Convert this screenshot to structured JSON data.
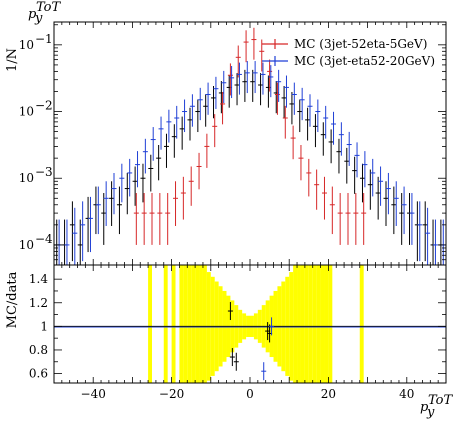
{
  "chart_data": {
    "type": "scatter",
    "top_panel": {
      "ylabel": "1/N",
      "yscale": "log",
      "ylim": [
        5e-05,
        0.22
      ],
      "yticks": [
        {
          "v": 0.0001,
          "base": "10",
          "exp": "−4"
        },
        {
          "v": 0.001,
          "base": "10",
          "exp": "−3"
        },
        {
          "v": 0.01,
          "base": "10",
          "exp": "−2"
        },
        {
          "v": 0.1,
          "base": "10",
          "exp": "−1"
        }
      ],
      "title_top": "p",
      "title_top_sub": "y",
      "title_top_sup": "ToT"
    },
    "ratio_panel": {
      "ylabel": "MC/data",
      "ylim": [
        0.52,
        1.52
      ],
      "yticks": [
        "0.6",
        "0.8",
        "1",
        "1.2",
        "1.4"
      ],
      "band_color": "#ffff00"
    },
    "xlim": [
      -50,
      50
    ],
    "xticks": [
      "-40",
      "-20",
      "0",
      "20",
      "40"
    ],
    "xlabel": "p",
    "xlabel_sub": "y",
    "xlabel_sup": "ToT",
    "legend": [
      {
        "name": "MC (3jet-52eta-5GeV)",
        "color": "#d62728"
      },
      {
        "name": "MC (3jet-eta52-20GeV)",
        "color": "#1f3fd6"
      }
    ],
    "series": [
      {
        "name": "data",
        "color": "#000000",
        "x": [
          -49,
          -47,
          -45,
          -43,
          -41,
          -39,
          -37,
          -35,
          -33,
          -31,
          -29,
          -27,
          -25,
          -23,
          -21,
          -19,
          -17,
          -15,
          -13,
          -11,
          -9,
          -7,
          -5,
          -3,
          -1,
          1,
          3,
          5,
          7,
          9,
          11,
          13,
          15,
          17,
          19,
          21,
          23,
          25,
          27,
          29,
          31,
          33,
          35,
          37,
          39,
          41,
          43,
          45,
          47,
          49
        ],
        "y": [
          0.0001,
          0.0001,
          0.0002,
          0.0001,
          0.00025,
          0.0004,
          0.0003,
          0.0005,
          0.0004,
          0.0007,
          0.0009,
          0.001,
          0.0014,
          0.002,
          0.003,
          0.0042,
          0.0055,
          0.0075,
          0.01,
          0.012,
          0.016,
          0.019,
          0.023,
          0.025,
          0.028,
          0.028,
          0.025,
          0.023,
          0.019,
          0.016,
          0.013,
          0.01,
          0.0075,
          0.006,
          0.0045,
          0.0035,
          0.0025,
          0.0018,
          0.0013,
          0.001,
          0.0008,
          0.0006,
          0.0005,
          0.0004,
          0.0003,
          0.0003,
          0.0002,
          0.0002,
          0.0001,
          0.0001
        ]
      },
      {
        "name": "MC (3jet-52eta-5GeV)",
        "color": "#d62728",
        "x": [
          -29,
          -27,
          -25,
          -23,
          -21,
          -19,
          -17,
          -15,
          -13,
          -11,
          -9,
          -7,
          -5,
          -3,
          -1,
          1,
          3,
          5,
          7,
          9,
          11,
          13,
          15,
          17,
          19,
          21,
          23,
          25,
          27,
          29
        ],
        "y": [
          0.0003,
          0.0003,
          0.0003,
          0.0003,
          0.0003,
          0.0005,
          0.0006,
          0.0009,
          0.0015,
          0.003,
          0.006,
          0.013,
          0.035,
          0.065,
          0.11,
          0.12,
          0.08,
          0.04,
          0.018,
          0.008,
          0.004,
          0.002,
          0.0012,
          0.0008,
          0.0006,
          0.0004,
          0.0003,
          0.0003,
          0.0003,
          0.0003
        ]
      },
      {
        "name": "MC (3jet-eta52-20GeV)",
        "color": "#1f3fd6",
        "x": [
          -49,
          -47,
          -45,
          -43,
          -41,
          -39,
          -37,
          -35,
          -33,
          -31,
          -29,
          -27,
          -25,
          -23,
          -21,
          -19,
          -17,
          -15,
          -13,
          -11,
          -9,
          -7,
          -5,
          -3,
          -1,
          1,
          3,
          5,
          7,
          9,
          11,
          13,
          15,
          17,
          19,
          21,
          23,
          25,
          27,
          29,
          31,
          33,
          35,
          37,
          39,
          41,
          43,
          45,
          47,
          49
        ],
        "y": [
          0.0001,
          0.0001,
          0.00015,
          0.0002,
          0.00025,
          0.0004,
          0.0005,
          0.0007,
          0.001,
          0.0012,
          0.0016,
          0.0025,
          0.0038,
          0.0055,
          0.007,
          0.008,
          0.01,
          0.012,
          0.015,
          0.018,
          0.022,
          0.027,
          0.032,
          0.036,
          0.038,
          0.038,
          0.036,
          0.033,
          0.028,
          0.023,
          0.018,
          0.015,
          0.012,
          0.01,
          0.008,
          0.0065,
          0.0045,
          0.0032,
          0.0022,
          0.0016,
          0.0012,
          0.0009,
          0.0007,
          0.0005,
          0.0004,
          0.0003,
          0.0002,
          0.00015,
          0.0001,
          0.0001
        ]
      }
    ],
    "ratio_points": [
      {
        "color": "#000000",
        "x": -5,
        "y": 1.13
      },
      {
        "color": "#000000",
        "x": -4.5,
        "y": 0.74
      },
      {
        "color": "#000000",
        "x": -3.5,
        "y": 0.7
      },
      {
        "color": "#000000",
        "x": 4.5,
        "y": 0.96
      },
      {
        "color": "#000000",
        "x": 5,
        "y": 0.94
      },
      {
        "color": "#1f3fd6",
        "x": 3.5,
        "y": 0.62
      },
      {
        "color": "#1f3fd6",
        "x": 5.5,
        "y": 1.0
      }
    ],
    "ratio_band_bins": [
      {
        "lo": -26,
        "hi": -25,
        "y0": 0.52,
        "y1": 1.52
      },
      {
        "lo": -22,
        "hi": -21,
        "y0": 0.52,
        "y1": 1.52
      },
      {
        "lo": -20,
        "hi": -19,
        "y0": 0.52,
        "y1": 1.52
      },
      {
        "lo": -18,
        "hi": -17,
        "y0": 0.52,
        "y1": 1.52
      },
      {
        "lo": -17,
        "hi": -16,
        "y0": 0.52,
        "y1": 1.52
      },
      {
        "lo": -16,
        "hi": -15,
        "y0": 0.52,
        "y1": 1.52
      },
      {
        "lo": -15,
        "hi": -14,
        "y0": 0.52,
        "y1": 1.52
      },
      {
        "lo": -14,
        "hi": -13,
        "y0": 0.52,
        "y1": 1.52
      },
      {
        "lo": -13,
        "hi": -12,
        "y0": 0.52,
        "y1": 1.52
      },
      {
        "lo": -12,
        "hi": -11,
        "y0": 0.52,
        "y1": 1.52
      },
      {
        "lo": -11,
        "hi": -10,
        "y0": 0.54,
        "y1": 1.46
      },
      {
        "lo": -10,
        "hi": -9,
        "y0": 0.58,
        "y1": 1.42
      },
      {
        "lo": -9,
        "hi": -8,
        "y0": 0.62,
        "y1": 1.38
      },
      {
        "lo": -8,
        "hi": -7,
        "y0": 0.66,
        "y1": 1.34
      },
      {
        "lo": -7,
        "hi": -6,
        "y0": 0.7,
        "y1": 1.3
      },
      {
        "lo": -6,
        "hi": -5,
        "y0": 0.74,
        "y1": 1.26
      },
      {
        "lo": -5,
        "hi": -4,
        "y0": 0.78,
        "y1": 1.22
      },
      {
        "lo": -4,
        "hi": -3,
        "y0": 0.82,
        "y1": 1.18
      },
      {
        "lo": -3,
        "hi": -2,
        "y0": 0.86,
        "y1": 1.14
      },
      {
        "lo": -2,
        "hi": -1,
        "y0": 0.89,
        "y1": 1.11
      },
      {
        "lo": -1,
        "hi": 0,
        "y0": 0.91,
        "y1": 1.09
      },
      {
        "lo": 0,
        "hi": 1,
        "y0": 0.91,
        "y1": 1.09
      },
      {
        "lo": 1,
        "hi": 2,
        "y0": 0.89,
        "y1": 1.11
      },
      {
        "lo": 2,
        "hi": 3,
        "y0": 0.86,
        "y1": 1.14
      },
      {
        "lo": 3,
        "hi": 4,
        "y0": 0.82,
        "y1": 1.18
      },
      {
        "lo": 4,
        "hi": 5,
        "y0": 0.78,
        "y1": 1.22
      },
      {
        "lo": 5,
        "hi": 6,
        "y0": 0.74,
        "y1": 1.26
      },
      {
        "lo": 6,
        "hi": 7,
        "y0": 0.7,
        "y1": 1.3
      },
      {
        "lo": 7,
        "hi": 8,
        "y0": 0.66,
        "y1": 1.34
      },
      {
        "lo": 8,
        "hi": 9,
        "y0": 0.62,
        "y1": 1.38
      },
      {
        "lo": 9,
        "hi": 10,
        "y0": 0.58,
        "y1": 1.42
      },
      {
        "lo": 10,
        "hi": 11,
        "y0": 0.54,
        "y1": 1.46
      },
      {
        "lo": 11,
        "hi": 12,
        "y0": 0.52,
        "y1": 1.52
      },
      {
        "lo": 12,
        "hi": 13,
        "y0": 0.52,
        "y1": 1.52
      },
      {
        "lo": 13,
        "hi": 14,
        "y0": 0.52,
        "y1": 1.52
      },
      {
        "lo": 14,
        "hi": 15,
        "y0": 0.52,
        "y1": 1.52
      },
      {
        "lo": 15,
        "hi": 16,
        "y0": 0.52,
        "y1": 1.52
      },
      {
        "lo": 16,
        "hi": 17,
        "y0": 0.52,
        "y1": 1.52
      },
      {
        "lo": 17,
        "hi": 18,
        "y0": 0.52,
        "y1": 1.52
      },
      {
        "lo": 18,
        "hi": 19,
        "y0": 0.52,
        "y1": 1.52
      },
      {
        "lo": 19,
        "hi": 20,
        "y0": 0.52,
        "y1": 1.52
      },
      {
        "lo": 20,
        "hi": 21,
        "y0": 0.52,
        "y1": 1.52
      },
      {
        "lo": 28,
        "hi": 29,
        "y0": 0.52,
        "y1": 1.52
      }
    ]
  }
}
